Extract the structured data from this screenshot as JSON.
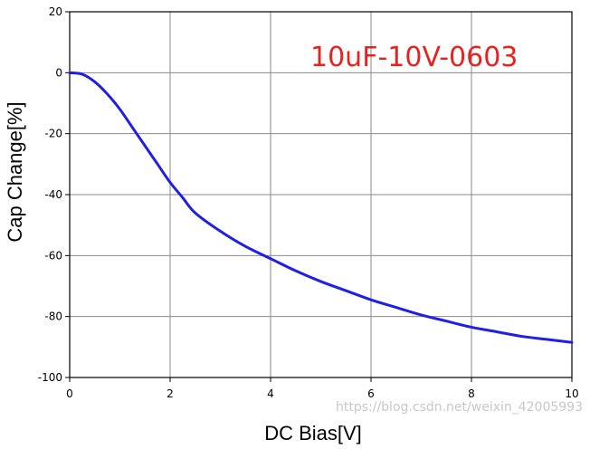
{
  "chart_data": {
    "type": "line",
    "title": "",
    "xlabel": "DC Bias[V]",
    "ylabel": "Cap Change[%]",
    "xlim": [
      0,
      10
    ],
    "ylim": [
      -100,
      20
    ],
    "xticks": [
      "0",
      "2",
      "4",
      "6",
      "8",
      "10"
    ],
    "yticks": [
      "20",
      "0",
      "-20",
      "-40",
      "-60",
      "-80",
      "-100"
    ],
    "grid": true,
    "annotation": {
      "text": "10uF-10V-0603",
      "color": "#e8231f"
    },
    "line_color": "#1f1fe6",
    "series": [
      {
        "x": [
          0,
          0.25,
          0.5,
          0.75,
          1.0,
          1.25,
          1.5,
          1.75,
          2.0,
          2.25,
          2.5,
          3.0,
          3.5,
          4.0,
          4.5,
          5.0,
          5.5,
          6.0,
          6.5,
          7.0,
          7.5,
          8.0,
          8.5,
          9.0,
          9.5,
          10.0
        ],
        "y": [
          0,
          -0.5,
          -3,
          -7,
          -12,
          -18,
          -24,
          -30,
          -36,
          -41,
          -46,
          -52,
          -57,
          -61,
          -65,
          -68.5,
          -71.5,
          -74.5,
          -77,
          -79.5,
          -81.5,
          -83.5,
          -85,
          -86.5,
          -87.5,
          -88.5
        ]
      }
    ]
  },
  "watermark": "https://blog.csdn.net/weixin_42005993"
}
